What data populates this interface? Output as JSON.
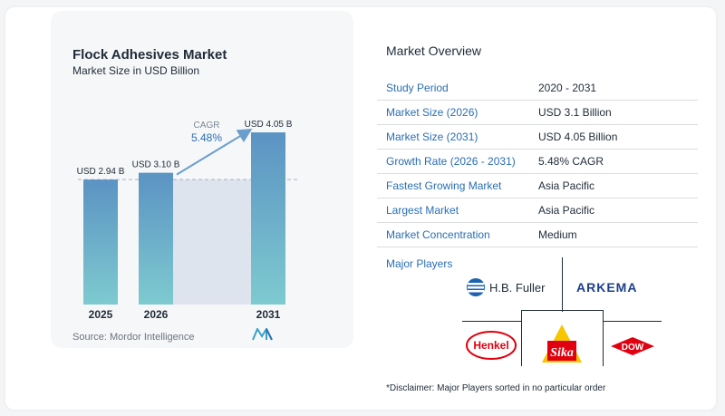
{
  "chart_data": {
    "type": "bar",
    "title": "Flock Adhesives Market",
    "subtitle": "Market Size in USD Billion",
    "categories": [
      "2025",
      "2026",
      "2031"
    ],
    "values": [
      2.94,
      3.1,
      4.05
    ],
    "value_labels": [
      "USD 2.94 B",
      "USD 3.10 B",
      "USD 4.05 B"
    ],
    "cagr_label": "CAGR",
    "cagr_value": "5.48%",
    "colors": {
      "bar_top": "#5b93c3",
      "bar_bottom": "#7ecad0",
      "shaded_region": "#dde4ee",
      "arrow": "#6a9fcd",
      "dashed_line": "#a6b3c2"
    }
  },
  "source": "Source:  Mordor Intelligence",
  "overview": {
    "title": "Market Overview",
    "rows": [
      {
        "key": "Study Period",
        "value": "2020 - 2031"
      },
      {
        "key": "Market Size (2026)",
        "value": "USD 3.1 Billion"
      },
      {
        "key": "Market Size (2031)",
        "value": "USD 4.05 Billion"
      },
      {
        "key": "Growth Rate (2026 - 2031)",
        "value": "5.48% CAGR"
      },
      {
        "key": "Fastest Growing Market",
        "value": "Asia Pacific"
      },
      {
        "key": "Largest Market",
        "value": "Asia Pacific"
      },
      {
        "key": "Market Concentration",
        "value": "Medium"
      }
    ]
  },
  "players": {
    "title": "Major Players",
    "logos": {
      "hb_fuller": "H.B. Fuller",
      "arkema": "ARKEMA",
      "henkel": "Henkel",
      "sika": "Sika",
      "dow": "DOW"
    }
  },
  "disclaimer": "*Disclaimer: Major Players sorted in no particular order"
}
